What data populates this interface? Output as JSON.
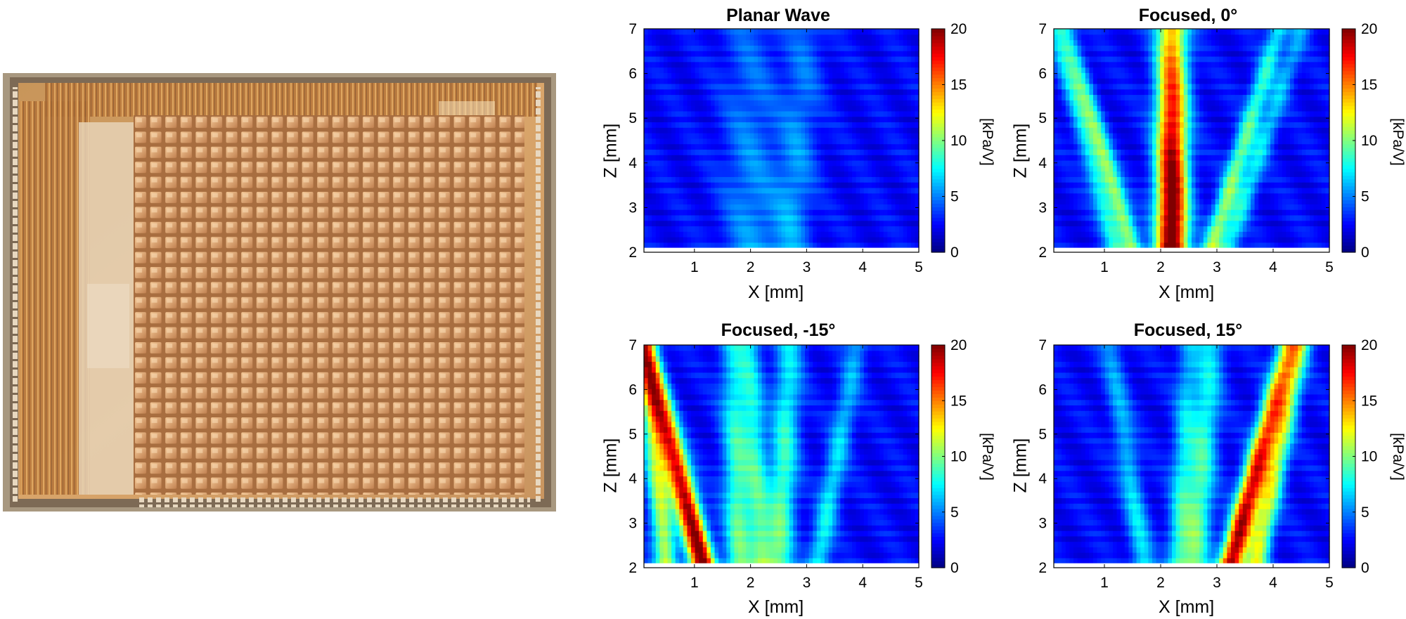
{
  "colors": {
    "axis": "#000000",
    "plot_background": "#1a3fd8"
  },
  "photo": {
    "description_icon": "chip-photo-icon"
  },
  "chart_data": [
    {
      "type": "heatmap",
      "title": "Planar Wave",
      "xlabel": "X [mm]",
      "ylabel": "Z [mm]",
      "xlim": [
        0.1,
        5
      ],
      "ylim": [
        2,
        7
      ],
      "xticks": [
        1,
        2,
        3,
        4,
        5
      ],
      "yticks": [
        2,
        3,
        4,
        5,
        6,
        7
      ],
      "data_ylim": [
        2.1,
        7
      ],
      "colorbar": {
        "label": "[kPa/V]",
        "ticks": [
          0,
          5,
          10,
          15,
          20
        ],
        "range": [
          0,
          20
        ],
        "colormap": "jet"
      },
      "beams": [
        {
          "x_start": 2.0,
          "x_end": 2.0,
          "peak": 2.8,
          "width": 0.5
        },
        {
          "x_start": 2.7,
          "x_end": 3.0,
          "peak": 3.0,
          "width": 0.35
        }
      ],
      "base_level": 2.5
    },
    {
      "type": "heatmap",
      "title": "Focused, 0°",
      "xlabel": "X [mm]",
      "ylabel": "Z [mm]",
      "xlim": [
        0.1,
        5
      ],
      "ylim": [
        2,
        7
      ],
      "xticks": [
        1,
        2,
        3,
        4,
        5
      ],
      "yticks": [
        2,
        3,
        4,
        5,
        6,
        7
      ],
      "data_ylim": [
        2.1,
        7
      ],
      "colorbar": {
        "label": "[kPa/V]",
        "ticks": [
          0,
          5,
          10,
          15,
          20
        ],
        "range": [
          0,
          20
        ],
        "colormap": "jet"
      },
      "beams": [
        {
          "x_start": 2.2,
          "x_end": 2.2,
          "peak": 19.0,
          "width": 0.28
        },
        {
          "x_start": 1.5,
          "x_end": 0.3,
          "peak": 8.0,
          "width": 0.18
        },
        {
          "x_start": 2.9,
          "x_end": 4.1,
          "peak": 8.0,
          "width": 0.18
        },
        {
          "x_start": 1.2,
          "x_end": 0.1,
          "peak": 5.0,
          "width": 0.18
        },
        {
          "x_start": 3.2,
          "x_end": 4.5,
          "peak": 5.0,
          "width": 0.18
        }
      ],
      "base_level": 2.5
    },
    {
      "type": "heatmap",
      "title": "Focused, -15°",
      "xlabel": "X [mm]",
      "ylabel": "Z [mm]",
      "xlim": [
        0.1,
        5
      ],
      "ylim": [
        2,
        7
      ],
      "xticks": [
        1,
        2,
        3,
        4,
        5
      ],
      "yticks": [
        2,
        3,
        4,
        5,
        6,
        7
      ],
      "data_ylim": [
        2.1,
        7
      ],
      "colorbar": {
        "label": "[kPa/V]",
        "ticks": [
          0,
          5,
          10,
          15,
          20
        ],
        "range": [
          0,
          20
        ],
        "colormap": "jet"
      },
      "beams": [
        {
          "x_start": 1.15,
          "x_end": 0.1,
          "peak": 18.0,
          "width": 0.22
        },
        {
          "x_start": 0.5,
          "x_end": 0.1,
          "peak": 9.0,
          "width": 0.2
        },
        {
          "x_start": 1.8,
          "x_end": 1.7,
          "peak": 7.0,
          "width": 0.25
        },
        {
          "x_start": 2.2,
          "x_end": 2.0,
          "peak": 6.0,
          "width": 0.2
        },
        {
          "x_start": 2.5,
          "x_end": 2.7,
          "peak": 7.0,
          "width": 0.25
        },
        {
          "x_start": 3.2,
          "x_end": 3.9,
          "peak": 5.0,
          "width": 0.2
        }
      ],
      "base_level": 2.5
    },
    {
      "type": "heatmap",
      "title": "Focused, 15°",
      "xlabel": "X [mm]",
      "ylabel": "Z [mm]",
      "xlim": [
        0.1,
        5
      ],
      "ylim": [
        2,
        7
      ],
      "xticks": [
        1,
        2,
        3,
        4,
        5
      ],
      "yticks": [
        2,
        3,
        4,
        5,
        6,
        7
      ],
      "data_ylim": [
        2.1,
        7
      ],
      "colorbar": {
        "label": "[kPa/V]",
        "ticks": [
          0,
          5,
          10,
          15,
          20
        ],
        "range": [
          0,
          20
        ],
        "colormap": "jet"
      },
      "beams": [
        {
          "x_start": 3.25,
          "x_end": 4.3,
          "peak": 17.0,
          "width": 0.22
        },
        {
          "x_start": 3.7,
          "x_end": 4.5,
          "peak": 9.0,
          "width": 0.2
        },
        {
          "x_start": 2.6,
          "x_end": 2.9,
          "peak": 7.0,
          "width": 0.25
        },
        {
          "x_start": 2.3,
          "x_end": 2.5,
          "peak": 5.0,
          "width": 0.2
        },
        {
          "x_start": 1.7,
          "x_end": 1.1,
          "peak": 4.5,
          "width": 0.2
        }
      ],
      "base_level": 2.5
    }
  ]
}
